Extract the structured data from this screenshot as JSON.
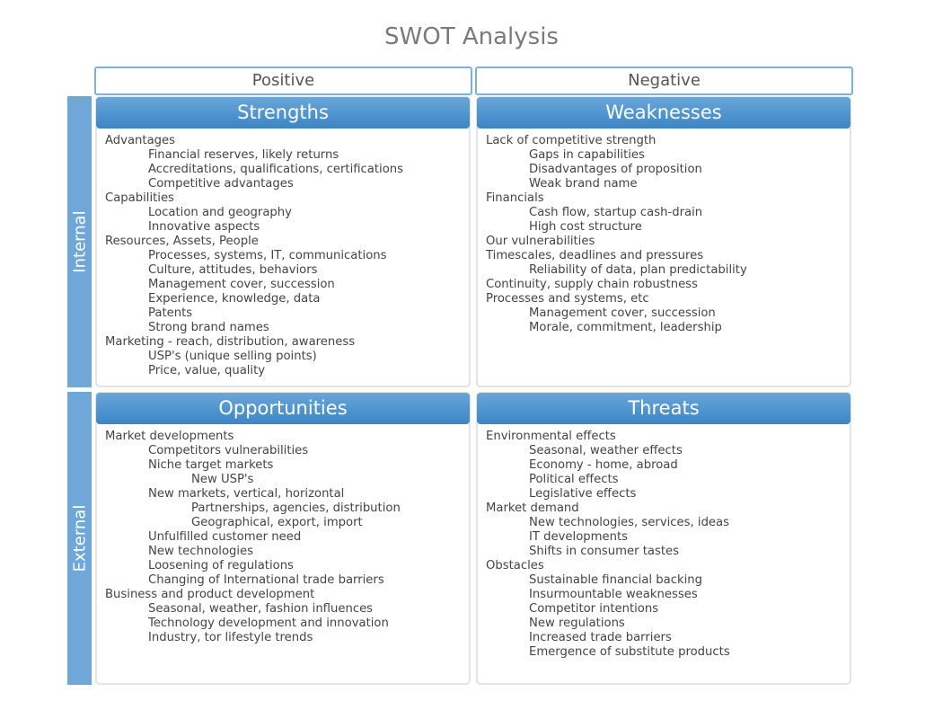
{
  "title": "SWOT Analysis",
  "columns": {
    "positive": "Positive",
    "negative": "Negative"
  },
  "rows": {
    "internal": "Internal",
    "external": "External"
  },
  "colors": {
    "header_gradient_top": "#6aa6d9",
    "header_gradient_bottom": "#3a86c6",
    "side_label": "#6fa8d8",
    "column_border": "#7fb0dc"
  },
  "quadrants": {
    "strengths": {
      "title": "Strengths",
      "items": [
        {
          "t": "Advantages",
          "l": 0
        },
        {
          "t": "Financial reserves, likely returns",
          "l": 1
        },
        {
          "t": "Accreditations, qualifications, certifications",
          "l": 1
        },
        {
          "t": "Competitive advantages",
          "l": 1
        },
        {
          "t": "Capabilities",
          "l": 0
        },
        {
          "t": "Location and geography",
          "l": 1
        },
        {
          "t": "Innovative aspects",
          "l": 1
        },
        {
          "t": "Resources, Assets, People",
          "l": 0
        },
        {
          "t": "Processes, systems, IT, communications",
          "l": 1
        },
        {
          "t": "Culture, attitudes, behaviors",
          "l": 1
        },
        {
          "t": "Management cover, succession",
          "l": 1
        },
        {
          "t": "Experience, knowledge, data",
          "l": 1
        },
        {
          "t": "Patents",
          "l": 1
        },
        {
          "t": "Strong brand names",
          "l": 1
        },
        {
          "t": "Marketing - reach, distribution, awareness",
          "l": 0
        },
        {
          "t": "USP's (unique selling points)",
          "l": 1
        },
        {
          "t": "Price, value, quality",
          "l": 1
        }
      ]
    },
    "weaknesses": {
      "title": "Weaknesses",
      "items": [
        {
          "t": "Lack of competitive strength",
          "l": 0
        },
        {
          "t": "Gaps in capabilities",
          "l": 1
        },
        {
          "t": "Disadvantages of proposition",
          "l": 1
        },
        {
          "t": "Weak brand name",
          "l": 1
        },
        {
          "t": "Financials",
          "l": 0
        },
        {
          "t": "Cash flow, startup cash-drain",
          "l": 1
        },
        {
          "t": "High cost structure",
          "l": 1
        },
        {
          "t": "Our vulnerabilities",
          "l": 0
        },
        {
          "t": "Timescales, deadlines and pressures",
          "l": 0
        },
        {
          "t": "Reliability of data, plan predictability",
          "l": 1
        },
        {
          "t": "Continuity, supply chain robustness",
          "l": 0
        },
        {
          "t": "Processes and systems, etc",
          "l": 0
        },
        {
          "t": "Management cover, succession",
          "l": 1
        },
        {
          "t": "Morale, commitment, leadership",
          "l": 1
        }
      ]
    },
    "opportunities": {
      "title": "Opportunities",
      "items": [
        {
          "t": "Market developments",
          "l": 0
        },
        {
          "t": "Competitors vulnerabilities",
          "l": 1
        },
        {
          "t": "Niche target markets",
          "l": 1
        },
        {
          "t": "New USP's",
          "l": 2
        },
        {
          "t": "New markets, vertical, horizontal",
          "l": 1
        },
        {
          "t": "Partnerships, agencies, distribution",
          "l": 2
        },
        {
          "t": "Geographical, export, import",
          "l": 2
        },
        {
          "t": "Unfulfilled customer need",
          "l": 1
        },
        {
          "t": "New technologies",
          "l": 1
        },
        {
          "t": "Loosening of regulations",
          "l": 1
        },
        {
          "t": "Changing of International trade barriers",
          "l": 1
        },
        {
          "t": "Business and product development",
          "l": 0
        },
        {
          "t": "Seasonal, weather, fashion influences",
          "l": 1
        },
        {
          "t": "Technology development and innovation",
          "l": 1
        },
        {
          "t": "Industry, tor lifestyle trends",
          "l": 1
        }
      ]
    },
    "threats": {
      "title": "Threats",
      "items": [
        {
          "t": "Environmental effects",
          "l": 0
        },
        {
          "t": "Seasonal, weather effects",
          "l": 1
        },
        {
          "t": "Economy - home, abroad",
          "l": 1
        },
        {
          "t": "Political effects",
          "l": 1
        },
        {
          "t": "Legislative effects",
          "l": 1
        },
        {
          "t": "Market demand",
          "l": 0
        },
        {
          "t": "New technologies, services, ideas",
          "l": 1
        },
        {
          "t": "IT developments",
          "l": 1
        },
        {
          "t": "Shifts  in consumer tastes",
          "l": 1
        },
        {
          "t": "Obstacles",
          "l": 0
        },
        {
          "t": "Sustainable financial backing",
          "l": 1
        },
        {
          "t": "Insurmountable weaknesses",
          "l": 1
        },
        {
          "t": "Competitor intentions",
          "l": 1
        },
        {
          "t": "New regulations",
          "l": 1
        },
        {
          "t": "Increased trade barriers",
          "l": 1
        },
        {
          "t": "Emergence of substitute products",
          "l": 1
        }
      ]
    }
  }
}
